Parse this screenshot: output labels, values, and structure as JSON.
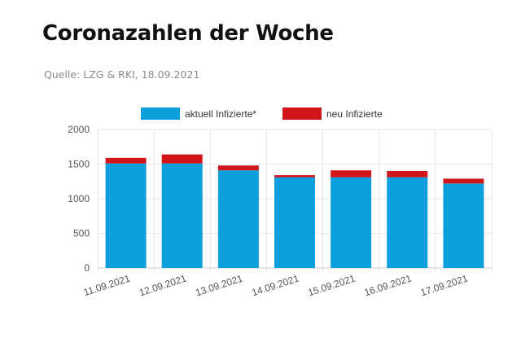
{
  "header": {
    "title": "Coronazahlen der Woche",
    "source": "Quelle: LZG & RKI, 18.09.2021"
  },
  "colors": {
    "series_1": "#0d9edd",
    "series_2": "#d1161b",
    "grid": "#e6e6e6",
    "axis_text": "#555555"
  },
  "chart_data": {
    "type": "bar",
    "stacked": true,
    "categories": [
      "11.09.2021",
      "12.09.2021",
      "13.09.2021",
      "14.09.2021",
      "15.09.2021",
      "16.09.2021",
      "17.09.2021"
    ],
    "series": [
      {
        "name": "aktuell Infizierte*",
        "values": [
          1510,
          1510,
          1410,
          1310,
          1310,
          1310,
          1220
        ]
      },
      {
        "name": "neu Infizierte",
        "values": [
          80,
          130,
          70,
          30,
          100,
          90,
          70
        ]
      }
    ],
    "y_ticks": [
      "0",
      "500",
      "1000",
      "1500",
      "2000"
    ],
    "ylim": [
      0,
      2000
    ],
    "legend_position": "top",
    "grid": true,
    "x_tick_rotation": "diagonal"
  }
}
